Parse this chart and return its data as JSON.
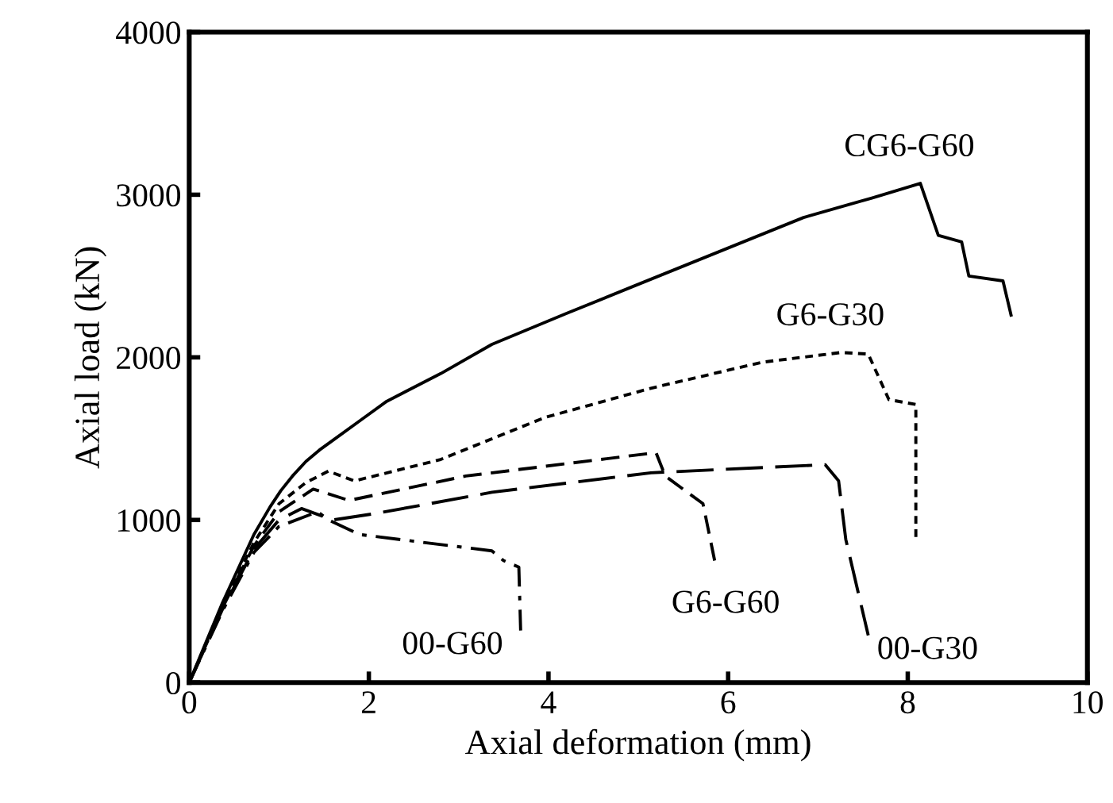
{
  "chart_data": {
    "type": "line",
    "xlabel": "Axial deformation (mm)",
    "ylabel": "Axial load (kN)",
    "xlim": [
      0,
      10
    ],
    "ylim": [
      0,
      4000
    ],
    "xticks": [
      0,
      2,
      4,
      6,
      8,
      10
    ],
    "yticks": [
      0,
      1000,
      2000,
      3000,
      4000
    ],
    "grid": false,
    "legend": false,
    "marker": "none",
    "series": [
      {
        "name": "CG6-G60",
        "color": "#000000",
        "line_style": "solid",
        "x": [
          0,
          0.37,
          0.72,
          0.9,
          1.02,
          1.15,
          1.3,
          1.45,
          1.6,
          1.9,
          2.2,
          2.8,
          3.37,
          4.2,
          4.96,
          5.9,
          6.84,
          7.6,
          8.14,
          8.34,
          8.6,
          8.68,
          9.06,
          9.15
        ],
        "values": [
          0,
          490,
          910,
          1080,
          1180,
          1270,
          1360,
          1430,
          1490,
          1610,
          1730,
          1900,
          2080,
          2270,
          2440,
          2650,
          2860,
          2980,
          3070,
          2750,
          2710,
          2500,
          2470,
          2260
        ]
      },
      {
        "name": "G6-G30",
        "color": "#000000",
        "line_style": "dotted",
        "x": [
          0,
          0.37,
          0.72,
          1.0,
          1.3,
          1.55,
          1.84,
          2.79,
          3.96,
          5.14,
          6.38,
          7.26,
          7.56,
          7.79,
          8.09,
          8.09
        ],
        "values": [
          0,
          470,
          860,
          1100,
          1230,
          1300,
          1240,
          1370,
          1630,
          1810,
          1970,
          2030,
          2020,
          1740,
          1710,
          880
        ]
      },
      {
        "name": "G6-G60",
        "color": "#000000",
        "line_style": "dashed",
        "x": [
          0,
          0.37,
          0.72,
          1.0,
          1.38,
          1.78,
          3.08,
          5.14,
          5.2,
          5.3,
          5.72,
          5.85
        ],
        "values": [
          0,
          460,
          840,
          1050,
          1190,
          1120,
          1270,
          1410,
          1410,
          1270,
          1100,
          750
        ]
      },
      {
        "name": "00-G30",
        "color": "#000000",
        "line_style": "dashed",
        "x": [
          0,
          0.37,
          0.72,
          1.0,
          1.25,
          1.6,
          2.08,
          3.37,
          5.14,
          7.08,
          7.23,
          7.31,
          7.56
        ],
        "values": [
          0,
          450,
          820,
          1000,
          1070,
          1000,
          1040,
          1170,
          1290,
          1340,
          1240,
          880,
          290
        ]
      },
      {
        "name": "00-G60",
        "color": "#000000",
        "line_style": "dashdot",
        "x": [
          0,
          0.37,
          0.72,
          1.0,
          1.43,
          1.55,
          1.9,
          3.37,
          3.5,
          3.67,
          3.69
        ],
        "values": [
          0,
          440,
          800,
          960,
          1050,
          1000,
          910,
          810,
          750,
          710,
          320
        ]
      }
    ]
  }
}
